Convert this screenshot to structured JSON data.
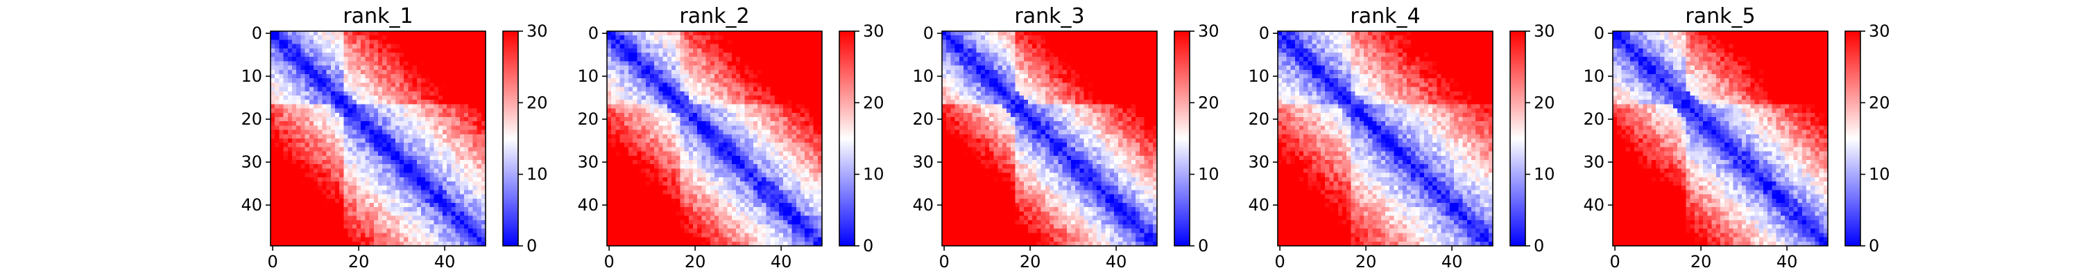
{
  "figure": {
    "background": "#ffffff"
  },
  "chart_data": [
    {
      "type": "heatmap",
      "title": "rank_1",
      "matrix_size": 50,
      "xticks": [
        0,
        20,
        40
      ],
      "yticks": [
        0,
        10,
        20,
        30,
        40
      ],
      "colorbar": {
        "min": 0,
        "max": 30,
        "ticks": [
          0,
          10,
          20,
          30
        ]
      },
      "colormap": "bwr",
      "colors": {
        "low": "#0000ff",
        "mid": "#ffffff",
        "high": "#ff0000"
      },
      "block_boundary": 17,
      "near_diagonal_band_width": 3,
      "offset_at_saturation": 22,
      "within_block_mean": 12,
      "between_block_mean": 24
    },
    {
      "type": "heatmap",
      "title": "rank_2",
      "matrix_size": 50,
      "xticks": [
        0,
        20,
        40
      ],
      "yticks": [
        0,
        10,
        20,
        30,
        40
      ],
      "colorbar": {
        "min": 0,
        "max": 30,
        "ticks": [
          0,
          10,
          20,
          30
        ]
      },
      "colormap": "bwr",
      "colors": {
        "low": "#0000ff",
        "mid": "#ffffff",
        "high": "#ff0000"
      },
      "block_boundary": 17,
      "near_diagonal_band_width": 3,
      "offset_at_saturation": 20,
      "within_block_mean": 13,
      "between_block_mean": 22
    },
    {
      "type": "heatmap",
      "title": "rank_3",
      "matrix_size": 50,
      "xticks": [
        0,
        20,
        40
      ],
      "yticks": [
        0,
        10,
        20,
        30,
        40
      ],
      "colorbar": {
        "min": 0,
        "max": 30,
        "ticks": [
          0,
          10,
          20,
          30
        ]
      },
      "colormap": "bwr",
      "colors": {
        "low": "#0000ff",
        "mid": "#ffffff",
        "high": "#ff0000"
      },
      "block_boundary": 17,
      "near_diagonal_band_width": 3,
      "offset_at_saturation": 18,
      "within_block_mean": 11,
      "between_block_mean": 25
    },
    {
      "type": "heatmap",
      "title": "rank_4",
      "matrix_size": 50,
      "xticks": [
        0,
        20,
        40
      ],
      "yticks": [
        0,
        10,
        20,
        30,
        40
      ],
      "colorbar": {
        "min": 0,
        "max": 30,
        "ticks": [
          0,
          10,
          20,
          30
        ]
      },
      "colormap": "bwr",
      "colors": {
        "low": "#0000ff",
        "mid": "#ffffff",
        "high": "#ff0000"
      },
      "block_boundary": 17,
      "near_diagonal_band_width": 3,
      "offset_at_saturation": 24,
      "within_block_mean": 12,
      "between_block_mean": 23
    },
    {
      "type": "heatmap",
      "title": "rank_5",
      "matrix_size": 50,
      "xticks": [
        0,
        20,
        40
      ],
      "yticks": [
        0,
        10,
        20,
        30,
        40
      ],
      "colorbar": {
        "min": 0,
        "max": 30,
        "ticks": [
          0,
          10,
          20,
          30
        ]
      },
      "colormap": "bwr",
      "colors": {
        "low": "#0000ff",
        "mid": "#ffffff",
        "high": "#ff0000"
      },
      "block_boundary": 17,
      "near_diagonal_band_width": 3,
      "offset_at_saturation": 20,
      "within_block_mean": 12,
      "between_block_mean": 24
    }
  ]
}
